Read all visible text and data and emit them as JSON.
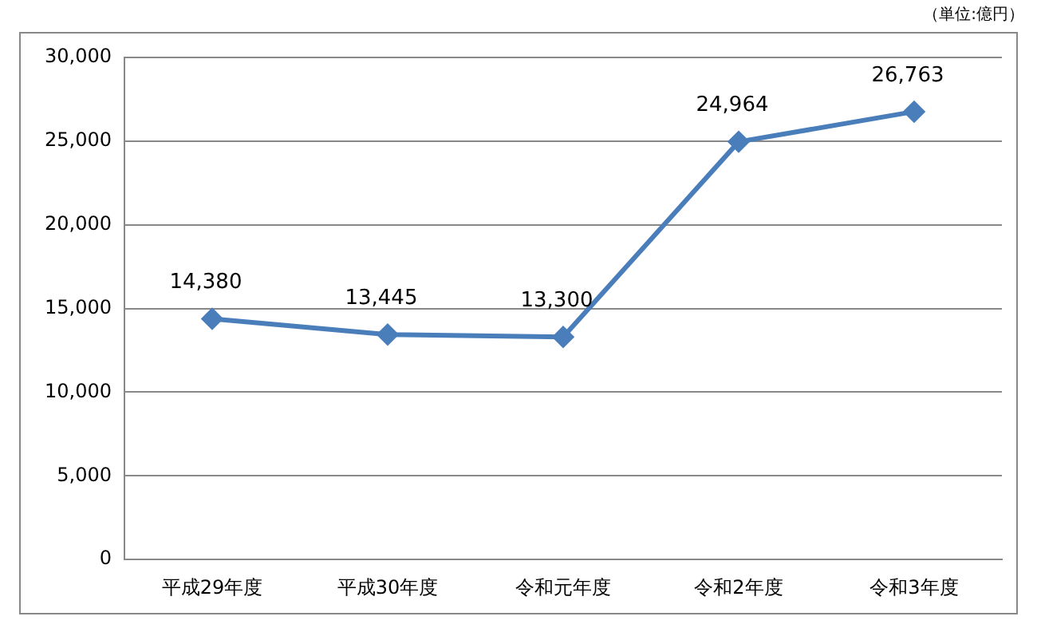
{
  "chart_data": {
    "type": "line",
    "annotations": [
      "（単位:億円）"
    ],
    "categories": [
      "平成29年度",
      "平成30年度",
      "令和元年度",
      "令和2年度",
      "令和3年度"
    ],
    "series": [
      {
        "color": "#4a7ebb",
        "values": [
          14380,
          13445,
          13300,
          24964,
          26763
        ],
        "value_labels": [
          "14,380",
          "13,445",
          "13,300",
          "24,964",
          "26,763"
        ]
      }
    ],
    "ylim": [
      0,
      30000
    ],
    "yticks": [
      0,
      {
        "value": 5000,
        "label": "5,000"
      },
      {
        "value": 10000,
        "label": "10,000"
      },
      {
        "value": 15000,
        "label": "15,000"
      },
      {
        "value": 20000,
        "label": "20,000"
      },
      {
        "value": 25000,
        "label": "25,000"
      },
      {
        "value": 30000,
        "label": "30,000"
      }
    ],
    "grid": "y",
    "legend": false,
    "marker": "diamond",
    "line_style": "solid"
  }
}
